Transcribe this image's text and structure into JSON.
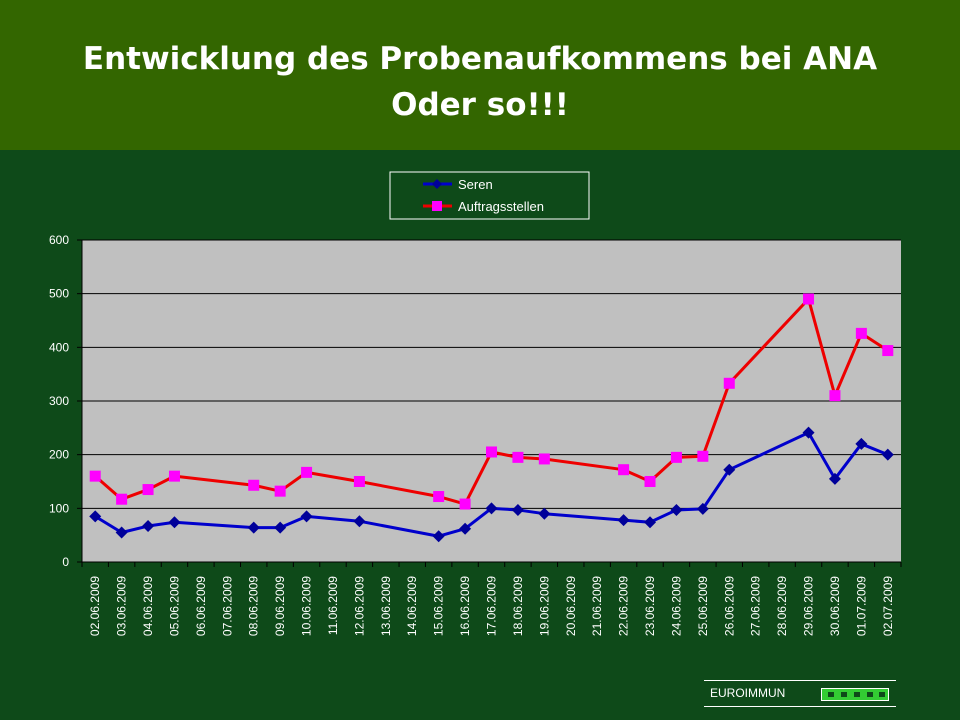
{
  "slide": {
    "title_line1": "Entwicklung des Probenaufkommens bei ANA",
    "title_line2": "Oder so!!!",
    "footer": "EUROIMMUN"
  },
  "colors": {
    "background": "#0e4a19",
    "title_band": "#336600",
    "plot_area": "#c0c0c0",
    "seren": "#0000cc",
    "auftragsstellen_line": "#ee0000",
    "auftragsstellen_marker": "#ff00ff"
  },
  "chart_data": {
    "type": "line",
    "title": "",
    "xlabel": "",
    "ylabel": "",
    "ylim": [
      0,
      600
    ],
    "yticks": [
      0,
      100,
      200,
      300,
      400,
      500,
      600
    ],
    "grid": "horizontal",
    "legend": "top-center",
    "categories": [
      "02.06.2009",
      "03.06.2009",
      "04.06.2009",
      "05.06.2009",
      "06.06.2009",
      "07.06.2009",
      "08.06.2009",
      "09.06.2009",
      "10.06.2009",
      "11.06.2009",
      "12.06.2009",
      "13.06.2009",
      "14.06.2009",
      "15.06.2009",
      "16.06.2009",
      "17.06.2009",
      "18.06.2009",
      "19.06.2009",
      "20.06.2009",
      "21.06.2009",
      "22.06.2009",
      "23.06.2009",
      "24.06.2009",
      "25.06.2009",
      "26.06.2009",
      "27.06.2009",
      "28.06.2009",
      "29.06.2009",
      "30.06.2009",
      "01.07.2009",
      "02.07.2009"
    ],
    "series": [
      {
        "name": "Seren",
        "color": "#0000cc",
        "marker": "diamond",
        "values": [
          85,
          55,
          67,
          74,
          null,
          null,
          64,
          64,
          85,
          null,
          76,
          null,
          null,
          48,
          62,
          100,
          97,
          90,
          null,
          null,
          78,
          74,
          97,
          99,
          172,
          null,
          null,
          241,
          155,
          220,
          200
        ]
      },
      {
        "name": "Auftragsstellen",
        "color": "#ee0000",
        "marker_color": "#ff00ff",
        "marker": "square",
        "values": [
          160,
          117,
          135,
          160,
          null,
          null,
          143,
          132,
          167,
          null,
          150,
          null,
          null,
          122,
          108,
          205,
          195,
          192,
          null,
          null,
          172,
          150,
          195,
          197,
          333,
          null,
          null,
          490,
          310,
          426,
          394
        ]
      }
    ]
  }
}
